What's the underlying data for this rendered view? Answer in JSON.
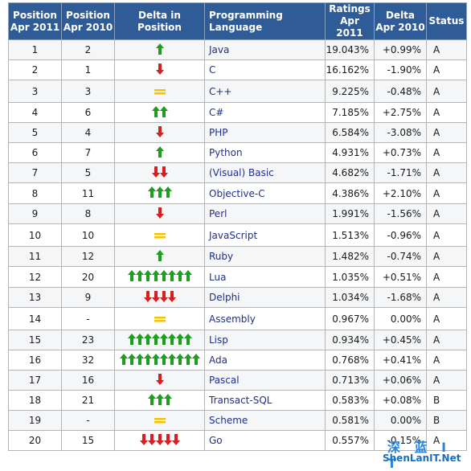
{
  "headers": {
    "pos_2011": "Position\nApr 2011",
    "pos_2010": "Position\nApr 2010",
    "delta_pos": "Delta in Position",
    "language": "Programming Language",
    "ratings": "Ratings\nApr 2011",
    "delta": "Delta\nApr 2010",
    "status": "Status"
  },
  "colors": {
    "header_bg": "#2f5c96",
    "up": "#1e9e1e",
    "down": "#d42020",
    "equal": "#f5c400",
    "link": "#1f2f8c"
  },
  "rows": [
    {
      "pos2011": "1",
      "pos2010": "2",
      "trend": "up",
      "count": 1,
      "lang": "Java",
      "rating": "19.043%",
      "delta": "+0.99%",
      "status": "A"
    },
    {
      "pos2011": "2",
      "pos2010": "1",
      "trend": "down",
      "count": 1,
      "lang": "C",
      "rating": "16.162%",
      "delta": "-1.90%",
      "status": "A"
    },
    {
      "pos2011": "3",
      "pos2010": "3",
      "trend": "equal",
      "count": 1,
      "lang": "C++",
      "rating": "9.225%",
      "delta": "-0.48%",
      "status": "A"
    },
    {
      "pos2011": "4",
      "pos2010": "6",
      "trend": "up",
      "count": 2,
      "lang": "C#",
      "rating": "7.185%",
      "delta": "+2.75%",
      "status": "A"
    },
    {
      "pos2011": "5",
      "pos2010": "4",
      "trend": "down",
      "count": 1,
      "lang": "PHP",
      "rating": "6.584%",
      "delta": "-3.08%",
      "status": "A"
    },
    {
      "pos2011": "6",
      "pos2010": "7",
      "trend": "up",
      "count": 1,
      "lang": "Python",
      "rating": "4.931%",
      "delta": "+0.73%",
      "status": "A"
    },
    {
      "pos2011": "7",
      "pos2010": "5",
      "trend": "down",
      "count": 2,
      "lang": "(Visual) Basic",
      "rating": "4.682%",
      "delta": "-1.71%",
      "status": "A"
    },
    {
      "pos2011": "8",
      "pos2010": "11",
      "trend": "up",
      "count": 3,
      "lang": "Objective-C",
      "rating": "4.386%",
      "delta": "+2.10%",
      "status": "A"
    },
    {
      "pos2011": "9",
      "pos2010": "8",
      "trend": "down",
      "count": 1,
      "lang": "Perl",
      "rating": "1.991%",
      "delta": "-1.56%",
      "status": "A"
    },
    {
      "pos2011": "10",
      "pos2010": "10",
      "trend": "equal",
      "count": 1,
      "lang": "JavaScript",
      "rating": "1.513%",
      "delta": "-0.96%",
      "status": "A"
    },
    {
      "pos2011": "11",
      "pos2010": "12",
      "trend": "up",
      "count": 1,
      "lang": "Ruby",
      "rating": "1.482%",
      "delta": "-0.74%",
      "status": "A"
    },
    {
      "pos2011": "12",
      "pos2010": "20",
      "trend": "up",
      "count": 8,
      "lang": "Lua",
      "rating": "1.035%",
      "delta": "+0.51%",
      "status": "A"
    },
    {
      "pos2011": "13",
      "pos2010": "9",
      "trend": "down",
      "count": 4,
      "lang": "Delphi",
      "rating": "1.034%",
      "delta": "-1.68%",
      "status": "A"
    },
    {
      "pos2011": "14",
      "pos2010": "-",
      "trend": "equal",
      "count": 1,
      "lang": "Assembly",
      "rating": "0.967%",
      "delta": "0.00%",
      "status": "A"
    },
    {
      "pos2011": "15",
      "pos2010": "23",
      "trend": "up",
      "count": 8,
      "lang": "Lisp",
      "rating": "0.934%",
      "delta": "+0.45%",
      "status": "A"
    },
    {
      "pos2011": "16",
      "pos2010": "32",
      "trend": "up",
      "count": 10,
      "lang": "Ada",
      "rating": "0.768%",
      "delta": "+0.41%",
      "status": "A"
    },
    {
      "pos2011": "17",
      "pos2010": "16",
      "trend": "down",
      "count": 1,
      "lang": "Pascal",
      "rating": "0.713%",
      "delta": "+0.06%",
      "status": "A"
    },
    {
      "pos2011": "18",
      "pos2010": "21",
      "trend": "up",
      "count": 3,
      "lang": "Transact-SQL",
      "rating": "0.583%",
      "delta": "+0.08%",
      "status": "B"
    },
    {
      "pos2011": "19",
      "pos2010": "-",
      "trend": "equal",
      "count": 1,
      "lang": "Scheme",
      "rating": "0.581%",
      "delta": "0.00%",
      "status": "B"
    },
    {
      "pos2011": "20",
      "pos2010": "15",
      "trend": "down",
      "count": 5,
      "lang": "Go",
      "rating": "0.557%",
      "delta": "-0.15%",
      "status": "A"
    }
  ],
  "watermark": {
    "cn": "深 蓝 I T",
    "en": "ShenLanIT.Net"
  }
}
